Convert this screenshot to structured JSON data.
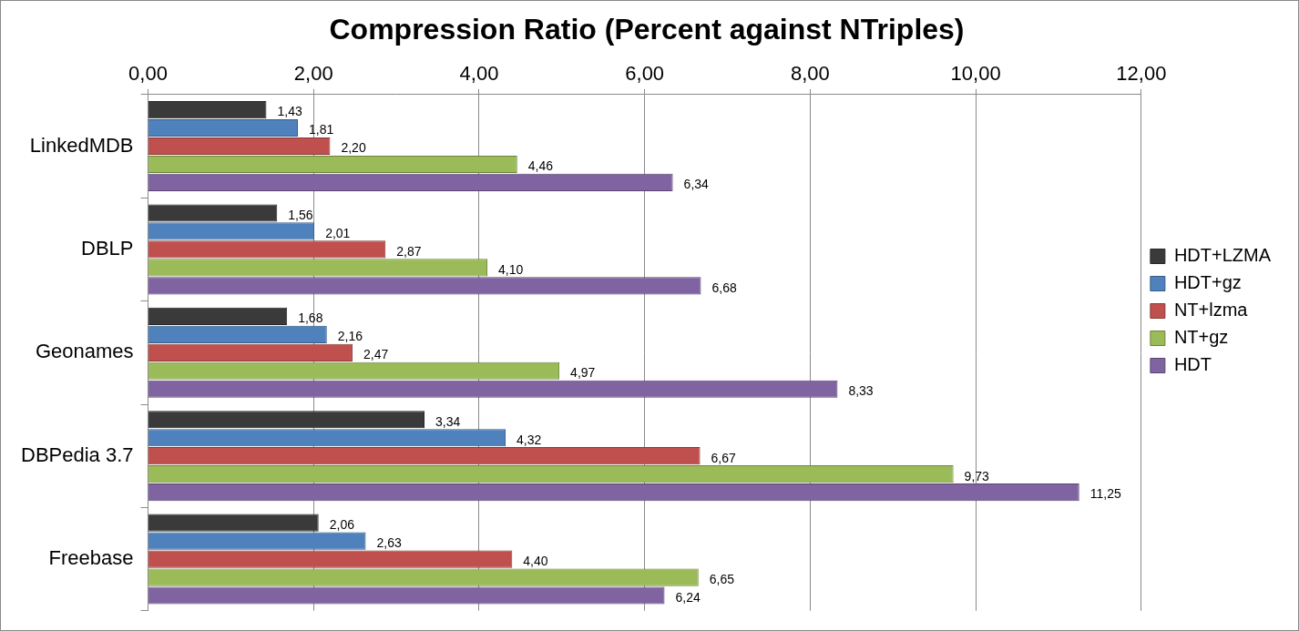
{
  "chart_data": {
    "type": "bar",
    "orientation": "horizontal",
    "title": "Compression Ratio (Percent against NTriples)",
    "categories": [
      "LinkedMDB",
      "DBLP",
      "Geonames",
      "DBPedia 3.7",
      "Freebase"
    ],
    "series": [
      {
        "name": "HDT+LZMA",
        "color": "#3a3a3a",
        "values": [
          1.43,
          1.56,
          1.68,
          3.34,
          2.06
        ],
        "value_labels": [
          "1,43",
          "1,56",
          "1,68",
          "3,34",
          "2,06"
        ]
      },
      {
        "name": "HDT+gz",
        "color": "#4f81bd",
        "values": [
          1.81,
          2.01,
          2.16,
          4.32,
          2.63
        ],
        "value_labels": [
          "1,81",
          "2,01",
          "2,16",
          "4,32",
          "2,63"
        ]
      },
      {
        "name": "NT+lzma",
        "color": "#c0504d",
        "values": [
          2.2,
          2.87,
          2.47,
          6.67,
          4.4
        ],
        "value_labels": [
          "2,20",
          "2,87",
          "2,47",
          "6,67",
          "4,40"
        ]
      },
      {
        "name": "NT+gz",
        "color": "#9bbb59",
        "values": [
          4.46,
          4.1,
          4.97,
          9.73,
          6.65
        ],
        "value_labels": [
          "4,46",
          "4,10",
          "4,97",
          "9,73",
          "6,65"
        ]
      },
      {
        "name": "HDT",
        "color": "#8064a2",
        "values": [
          6.34,
          6.68,
          8.33,
          11.25,
          6.24
        ],
        "value_labels": [
          "6,34",
          "6,68",
          "8,33",
          "11,25",
          "6,24"
        ]
      }
    ],
    "xlim": [
      0,
      12
    ],
    "xticks": [
      {
        "value": 0,
        "label": "0,00"
      },
      {
        "value": 2,
        "label": "2,00"
      },
      {
        "value": 4,
        "label": "4,00"
      },
      {
        "value": 6,
        "label": "6,00"
      },
      {
        "value": 8,
        "label": "8,00"
      },
      {
        "value": 10,
        "label": "10,00"
      },
      {
        "value": 12,
        "label": "12,00"
      }
    ],
    "grid": true,
    "legend": "right",
    "data_labels": true
  }
}
